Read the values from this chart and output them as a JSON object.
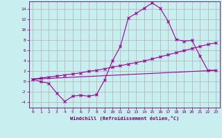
{
  "xlabel": "Windchill (Refroidissement éolien,°C)",
  "background_color": "#c8eef0",
  "grid_color": "#b0b0b0",
  "line_color": "#990099",
  "xlim": [
    -0.5,
    23.5
  ],
  "ylim": [
    -5,
    15.5
  ],
  "xticks": [
    0,
    1,
    2,
    3,
    4,
    5,
    6,
    7,
    8,
    9,
    10,
    11,
    12,
    13,
    14,
    15,
    16,
    17,
    18,
    19,
    20,
    21,
    22,
    23
  ],
  "yticks": [
    -4,
    -2,
    0,
    2,
    4,
    6,
    8,
    10,
    12,
    14
  ],
  "line1_x": [
    0,
    1,
    2,
    3,
    4,
    5,
    6,
    7,
    8,
    9,
    10,
    11,
    12,
    13,
    14,
    15,
    16,
    17,
    18,
    19,
    20,
    21,
    22,
    23
  ],
  "line1_y": [
    0.5,
    0.0,
    -0.3,
    -2.2,
    -3.8,
    -2.8,
    -2.6,
    -2.8,
    -2.5,
    0.3,
    4.0,
    6.8,
    12.3,
    13.2,
    14.2,
    15.2,
    14.2,
    11.7,
    8.2,
    7.8,
    8.0,
    5.0,
    2.2,
    2.2
  ],
  "line2_x": [
    0,
    1,
    2,
    3,
    4,
    5,
    6,
    7,
    8,
    9,
    10,
    11,
    12,
    13,
    14,
    15,
    16,
    17,
    18,
    19,
    20,
    21,
    22,
    23
  ],
  "line2_y": [
    0.5,
    0.7,
    0.9,
    1.1,
    1.3,
    1.5,
    1.7,
    2.0,
    2.2,
    2.5,
    2.8,
    3.1,
    3.4,
    3.7,
    4.0,
    4.4,
    4.8,
    5.2,
    5.6,
    6.0,
    6.4,
    6.8,
    7.2,
    7.5
  ],
  "line3_x": [
    0,
    23
  ],
  "line3_y": [
    0.5,
    2.2
  ],
  "marker_size": 3
}
